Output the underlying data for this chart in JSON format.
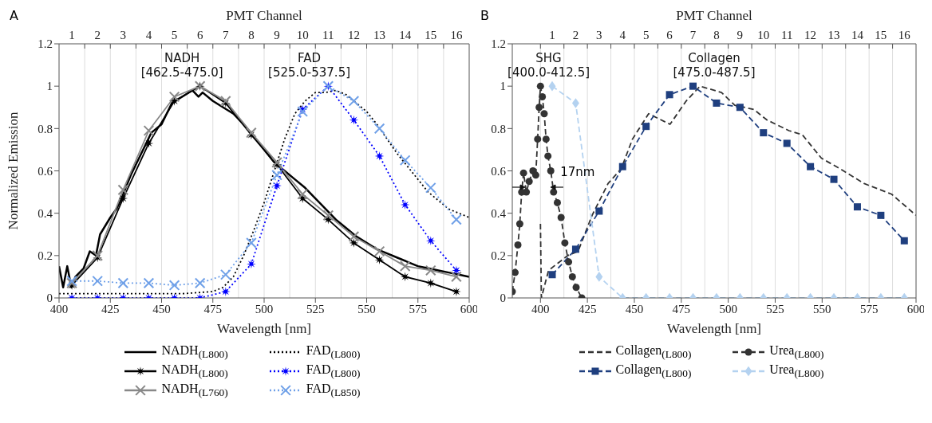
{
  "chart_data": [
    {
      "type": "line",
      "xlabel": "Wavelength [nm]",
      "ylabel": "Normalized Emission",
      "x2label": "PMT Channel",
      "xlim": [
        400,
        600
      ],
      "xticks": [
        400,
        425,
        450,
        475,
        500,
        525,
        550,
        575,
        600
      ],
      "x2lim": [
        0.5,
        16.5
      ],
      "x2ticks": [
        1,
        2,
        3,
        4,
        5,
        6,
        7,
        8,
        9,
        10,
        11,
        12,
        13,
        14,
        15,
        16,
        {
          "value": 1.5,
          "label": null
        },
        {
          "value": 2.5,
          "label": null
        },
        {
          "value": 3.5,
          "label": null
        },
        {
          "value": 4.5,
          "label": null
        },
        {
          "value": 5.5,
          "label": null
        },
        {
          "value": 6.5,
          "label": null
        },
        {
          "value": 7.5,
          "label": null
        },
        {
          "value": 8.5,
          "label": null
        },
        {
          "value": 9.5,
          "label": null
        },
        {
          "value": 10.5,
          "label": null
        },
        {
          "value": 11.5,
          "label": null
        },
        {
          "value": 12.5,
          "label": null
        },
        {
          "value": 13.5,
          "label": null
        },
        {
          "value": 14.5,
          "label": null
        },
        {
          "value": 15.5,
          "label": null
        }
      ],
      "ylim": [
        0,
        1.2
      ],
      "yticks": [
        0,
        0.2,
        0.4,
        0.6,
        0.8,
        1,
        1.2
      ],
      "grid": "x",
      "legend": "bottom",
      "annotations": [
        "A",
        "NADH\n[462.5-475.0]",
        "FAD\n[525.0-537.5]"
      ],
      "series": [
        {
          "name": "NADH$_{(L800)}$",
          "color": "#000000",
          "marker": "none",
          "line_style": "solid",
          "x": [
            400,
            402,
            404,
            406,
            408,
            410,
            412,
            415,
            418,
            420,
            425,
            428,
            430,
            435,
            440,
            445,
            450,
            455,
            460,
            465,
            468,
            470,
            475,
            480,
            485,
            490,
            495,
            500,
            505,
            510,
            515,
            520,
            525,
            530,
            535,
            540,
            545,
            550,
            555,
            560,
            565,
            570,
            575,
            580,
            585,
            590,
            595,
            600
          ],
          "values": [
            0.15,
            0.05,
            0.15,
            0.05,
            0.1,
            0.12,
            0.14,
            0.22,
            0.2,
            0.3,
            0.38,
            0.42,
            0.46,
            0.58,
            0.68,
            0.78,
            0.82,
            0.92,
            0.95,
            0.98,
            0.95,
            0.97,
            0.93,
            0.9,
            0.87,
            0.82,
            0.76,
            0.7,
            0.64,
            0.6,
            0.56,
            0.52,
            0.47,
            0.42,
            0.37,
            0.33,
            0.29,
            0.26,
            0.23,
            0.21,
            0.19,
            0.17,
            0.15,
            0.14,
            0.13,
            0.12,
            0.11,
            0.1
          ]
        },
        {
          "name": "NADH$_{(L800)}$",
          "color": "#000000",
          "marker": "star",
          "line_style": "solid",
          "x": [
            406.25,
            418.75,
            431.25,
            443.75,
            456.25,
            468.75,
            481.25,
            493.75,
            506.25,
            518.75,
            531.25,
            543.75,
            556.25,
            568.75,
            581.25,
            593.75
          ],
          "values": [
            0.06,
            0.19,
            0.47,
            0.73,
            0.93,
            1.0,
            0.92,
            0.77,
            0.63,
            0.47,
            0.37,
            0.26,
            0.18,
            0.1,
            0.07,
            0.03
          ]
        },
        {
          "name": "NADH$_{(L760)}$",
          "color": "#888888",
          "marker": "cross",
          "line_style": "solid",
          "x": [
            406.25,
            418.75,
            431.25,
            443.75,
            456.25,
            468.75,
            481.25,
            493.75,
            506.25,
            518.75,
            531.25,
            543.75,
            556.25,
            568.75,
            581.25,
            593.75
          ],
          "values": [
            0.07,
            0.2,
            0.51,
            0.79,
            0.95,
            1.0,
            0.93,
            0.78,
            0.64,
            0.49,
            0.39,
            0.29,
            0.22,
            0.15,
            0.13,
            0.1
          ]
        },
        {
          "name": "FAD$_{(L800)}$",
          "color": "#000000",
          "marker": "none",
          "line_style": "dotted",
          "x": [
            400,
            420,
            440,
            460,
            475,
            480,
            485,
            490,
            495,
            500,
            505,
            510,
            515,
            520,
            525,
            530,
            535,
            540,
            545,
            550,
            555,
            560,
            565,
            570,
            575,
            580,
            585,
            590,
            595,
            600
          ],
          "values": [
            0.02,
            0.02,
            0.02,
            0.02,
            0.03,
            0.05,
            0.1,
            0.2,
            0.32,
            0.45,
            0.6,
            0.75,
            0.87,
            0.93,
            0.97,
            0.97,
            0.98,
            0.96,
            0.92,
            0.88,
            0.82,
            0.75,
            0.68,
            0.62,
            0.56,
            0.5,
            0.46,
            0.42,
            0.4,
            0.38
          ]
        },
        {
          "name": "FAD$_{(L800)}$",
          "color": "#0000ff",
          "marker": "star",
          "line_style": "dotted",
          "x": [
            406.25,
            418.75,
            431.25,
            443.75,
            456.25,
            468.75,
            481.25,
            493.75,
            506.25,
            518.75,
            531.25,
            543.75,
            556.25,
            568.75,
            581.25,
            593.75
          ],
          "values": [
            0.0,
            0.0,
            0.0,
            0.0,
            0.0,
            0.0,
            0.03,
            0.16,
            0.53,
            0.89,
            1.0,
            0.84,
            0.67,
            0.44,
            0.27,
            0.13
          ]
        },
        {
          "name": "FAD$_{(L850)}$",
          "color": "#6fa0e8",
          "marker": "cross",
          "line_style": "dotted",
          "x": [
            406.25,
            418.75,
            431.25,
            443.75,
            456.25,
            468.75,
            481.25,
            493.75,
            506.25,
            518.75,
            531.25,
            543.75,
            556.25,
            568.75,
            581.25,
            593.75
          ],
          "values": [
            0.08,
            0.08,
            0.07,
            0.07,
            0.06,
            0.07,
            0.11,
            0.26,
            0.58,
            0.88,
            1.0,
            0.93,
            0.8,
            0.65,
            0.52,
            0.37
          ]
        }
      ]
    },
    {
      "type": "line",
      "xlabel": "Wavelength [nm]",
      "x2label": "PMT Channel",
      "xlim": [
        385,
        600
      ],
      "xticks": [
        400,
        425,
        450,
        475,
        500,
        525,
        550,
        575,
        600
      ],
      "x2lim": [
        -0.7,
        16.5
      ],
      "x2ticks": [
        1,
        2,
        3,
        4,
        5,
        6,
        7,
        8,
        9,
        10,
        11,
        12,
        13,
        14,
        15,
        16,
        {
          "value": 0.5,
          "label": null
        },
        {
          "value": 1.5,
          "label": null
        },
        {
          "value": 2.5,
          "label": null
        },
        {
          "value": 3.5,
          "label": null
        },
        {
          "value": 4.5,
          "label": null
        },
        {
          "value": 5.5,
          "label": null
        },
        {
          "value": 6.5,
          "label": null
        },
        {
          "value": 7.5,
          "label": null
        },
        {
          "value": 8.5,
          "label": null
        },
        {
          "value": 9.5,
          "label": null
        },
        {
          "value": 10.5,
          "label": null
        },
        {
          "value": 11.5,
          "label": null
        },
        {
          "value": 12.5,
          "label": null
        },
        {
          "value": 13.5,
          "label": null
        },
        {
          "value": 14.5,
          "label": null
        },
        {
          "value": 15.5,
          "label": null
        }
      ],
      "ylim": [
        0,
        1.2
      ],
      "yticks": [
        0,
        0.2,
        0.4,
        0.6,
        0.8,
        1,
        1.2
      ],
      "grid": "x",
      "legend": "bottom",
      "annotations": [
        "B",
        "SHG\n[400.0-412.5]",
        "Collagen\n[475.0-487.5]",
        "17nm"
      ],
      "series": [
        {
          "name": "Collagen$_{(L800)}$",
          "color": "#333333",
          "marker": "none",
          "line_style": "dashed",
          "x": [
            400,
            400.5,
            404.3,
            414.5,
            420,
            427.5,
            436,
            443,
            449,
            457.6,
            469,
            477.6,
            485,
            496.4,
            503.5,
            513.6,
            520.7,
            532.3,
            539.5,
            549.6,
            559.5,
            572.4,
            587,
            600
          ],
          "values": [
            0.35,
            0.0,
            0.13,
            0.2,
            0.22,
            0.39,
            0.54,
            0.61,
            0.75,
            0.87,
            0.82,
            0.93,
            1.0,
            0.97,
            0.91,
            0.89,
            0.84,
            0.79,
            0.77,
            0.66,
            0.61,
            0.54,
            0.49,
            0.39
          ]
        },
        {
          "name": "Collagen$_{(L800)}$",
          "color": "#1f3f7f",
          "marker": "square",
          "line_style": "dashed",
          "x": [
            406.25,
            418.75,
            431.25,
            443.75,
            456.25,
            468.75,
            481.25,
            493.75,
            506.25,
            518.75,
            531.25,
            543.75,
            556.25,
            568.75,
            581.25,
            593.75
          ],
          "values": [
            0.11,
            0.23,
            0.41,
            0.62,
            0.81,
            0.96,
            1.0,
            0.92,
            0.9,
            0.78,
            0.73,
            0.62,
            0.56,
            0.43,
            0.39,
            0.27
          ]
        },
        {
          "name": "Urea$_{(L800)}$",
          "color": "#333333",
          "marker": "circle",
          "line_style": "dashed",
          "x": [
            385,
            386.5,
            388,
            389,
            390,
            391,
            392.5,
            394,
            396,
            397.5,
            398.5,
            399.3,
            400,
            401,
            402,
            403,
            404,
            405.5,
            407,
            409,
            411,
            413,
            415,
            417,
            419,
            422
          ],
          "values": [
            0.03,
            0.12,
            0.25,
            0.35,
            0.5,
            0.59,
            0.5,
            0.55,
            0.6,
            0.58,
            0.75,
            0.9,
            1.0,
            0.95,
            0.87,
            0.75,
            0.67,
            0.6,
            0.5,
            0.45,
            0.38,
            0.26,
            0.17,
            0.1,
            0.05,
            0.0
          ]
        },
        {
          "name": "Urea$_{(L800)}$",
          "color": "#b4d2f0",
          "marker": "diamond",
          "line_style": "dashed",
          "x": [
            406.25,
            418.75,
            431.25,
            443.75,
            456.25,
            468.75,
            481.25,
            493.75,
            506.25,
            518.75,
            531.25,
            543.75,
            556.25,
            568.75,
            581.25,
            593.75
          ],
          "values": [
            1.0,
            0.92,
            0.1,
            0.0,
            0.0,
            0.0,
            0.0,
            0.0,
            0.0,
            0.0,
            0.0,
            0.0,
            0.0,
            0.0,
            0.0,
            0.0
          ]
        }
      ]
    }
  ]
}
